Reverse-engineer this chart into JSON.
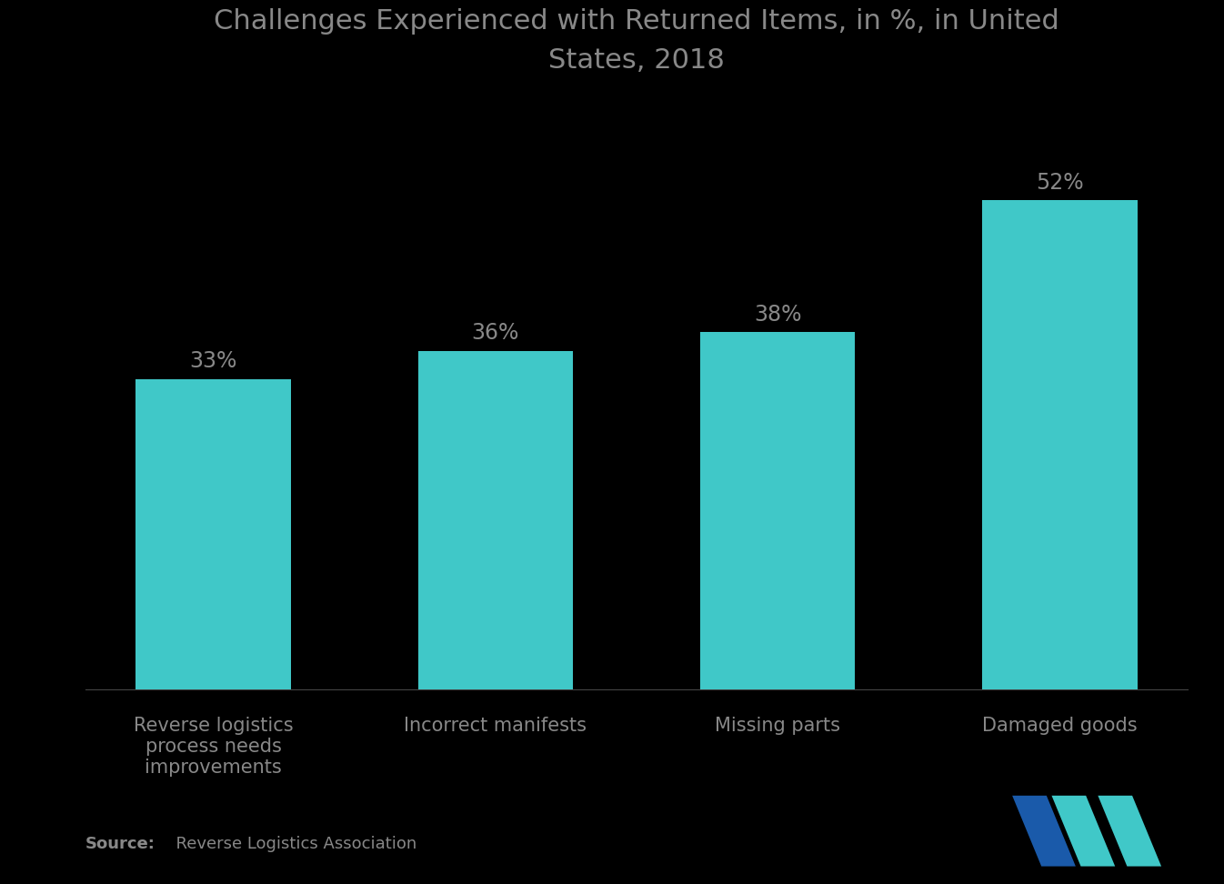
{
  "title": "Challenges Experienced with Returned Items, in %, in United\nStates, 2018",
  "categories": [
    "Reverse logistics\nprocess needs\nimprovements",
    "Incorrect manifests",
    "Missing parts",
    "Damaged goods"
  ],
  "values": [
    33,
    36,
    38,
    52
  ],
  "bar_color": "#40C8C8",
  "value_labels": [
    "33%",
    "36%",
    "38%",
    "52%"
  ],
  "background_color": "#000000",
  "text_color": "#888888",
  "title_color": "#888888",
  "source_label_bold": "Source:",
  "source_label_rest": "  Reverse Logistics Association",
  "ylim": [
    0,
    62
  ],
  "title_fontsize": 22,
  "tick_fontsize": 15,
  "value_fontsize": 17,
  "source_fontsize": 13,
  "bar_width": 0.55,
  "logo_blue": "#1a5aaa",
  "logo_teal": "#40C8C8"
}
